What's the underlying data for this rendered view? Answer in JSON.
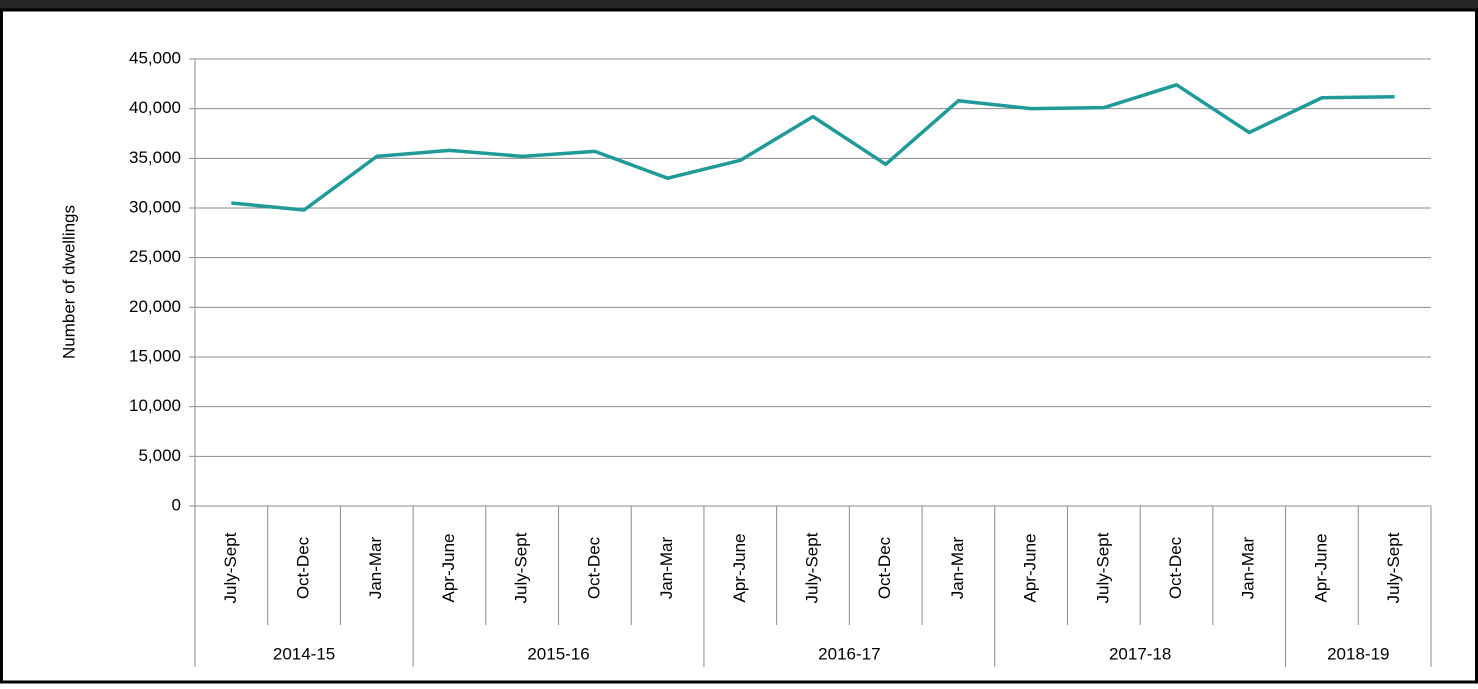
{
  "chart_data": {
    "type": "line",
    "y_label": "Number of dwellings",
    "groups": [
      {
        "label": "2014-15",
        "categories": [
          "July-Sept",
          "Oct-Dec",
          "Jan-Mar"
        ]
      },
      {
        "label": "2015-16",
        "categories": [
          "Apr-June",
          "July-Sept",
          "Oct-Dec",
          "Jan-Mar"
        ]
      },
      {
        "label": "2016-17",
        "categories": [
          "Apr-June",
          "July-Sept",
          "Oct-Dec",
          "Jan-Mar"
        ]
      },
      {
        "label": "2017-18",
        "categories": [
          "Apr-June",
          "July-Sept",
          "Oct-Dec",
          "Jan-Mar"
        ]
      },
      {
        "label": "2018-19",
        "categories": [
          "Apr-June",
          "July-Sept"
        ]
      }
    ],
    "values": [
      30500,
      29800,
      35200,
      35800,
      35200,
      35700,
      33000,
      34800,
      39200,
      34400,
      40800,
      40000,
      40100,
      42400,
      37600,
      41100,
      41200
    ],
    "color": "#1f9a98",
    "ylim": [
      0,
      45000
    ],
    "yticks": [
      0,
      {
        "value": 5000,
        "label": "5,000"
      },
      {
        "value": 10000,
        "label": "10,000"
      },
      {
        "value": 15000,
        "label": "15,000"
      },
      {
        "value": 20000,
        "label": "20,000"
      },
      {
        "value": 25000,
        "label": "25,000"
      },
      {
        "value": 30000,
        "label": "30,000"
      },
      {
        "value": 35000,
        "label": "35,000"
      },
      {
        "value": 40000,
        "label": "40,000"
      },
      {
        "value": 45000,
        "label": "45,000"
      }
    ],
    "grid": true
  }
}
